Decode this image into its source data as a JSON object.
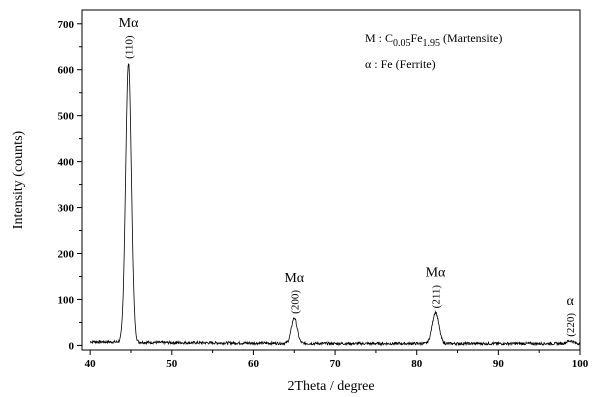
{
  "chart_data": {
    "type": "line",
    "title": "",
    "xlabel": "2Theta / degree",
    "ylabel": "Intensity (counts)",
    "xlim": [
      39,
      100
    ],
    "ylim": [
      -10,
      730
    ],
    "xticks": [
      40,
      50,
      60,
      70,
      80,
      90,
      100
    ],
    "yticks": [
      0,
      100,
      200,
      300,
      400,
      500,
      600,
      700
    ],
    "grid": false,
    "series": [
      {
        "peaks": [
          {
            "x": 44.7,
            "y": 615,
            "width": 0.35
          },
          {
            "x": 65.0,
            "y": 60,
            "width": 0.35
          },
          {
            "x": 82.3,
            "y": 72,
            "width": 0.4
          },
          {
            "x": 98.8,
            "y": 10,
            "width": 0.4
          }
        ],
        "baseline": [
          {
            "x": 40,
            "y": 8
          },
          {
            "x": 50,
            "y": 6
          },
          {
            "x": 60,
            "y": 5
          },
          {
            "x": 70,
            "y": 4
          },
          {
            "x": 80,
            "y": 4
          },
          {
            "x": 90,
            "y": 4
          },
          {
            "x": 100,
            "y": 4
          }
        ]
      }
    ],
    "annotations": [
      {
        "x": 44.7,
        "y": 615,
        "phase": "Mα",
        "hkl": "(110)"
      },
      {
        "x": 65.0,
        "y": 60,
        "phase": "Mα",
        "hkl": "(200)"
      },
      {
        "x": 82.3,
        "y": 72,
        "phase": "Mα",
        "hkl": "(211)"
      },
      {
        "x": 98.8,
        "y": 10,
        "phase": "α",
        "hkl": "(220)"
      }
    ],
    "legend": {
      "placement": "top-right",
      "entries": [
        {
          "prefix": "M : C",
          "sub1": "0.05",
          "mid": "Fe",
          "sub2": "1.95",
          "suffix": " (Martensite)"
        },
        {
          "prefix": "α : Fe (Ferrite)"
        }
      ]
    }
  }
}
